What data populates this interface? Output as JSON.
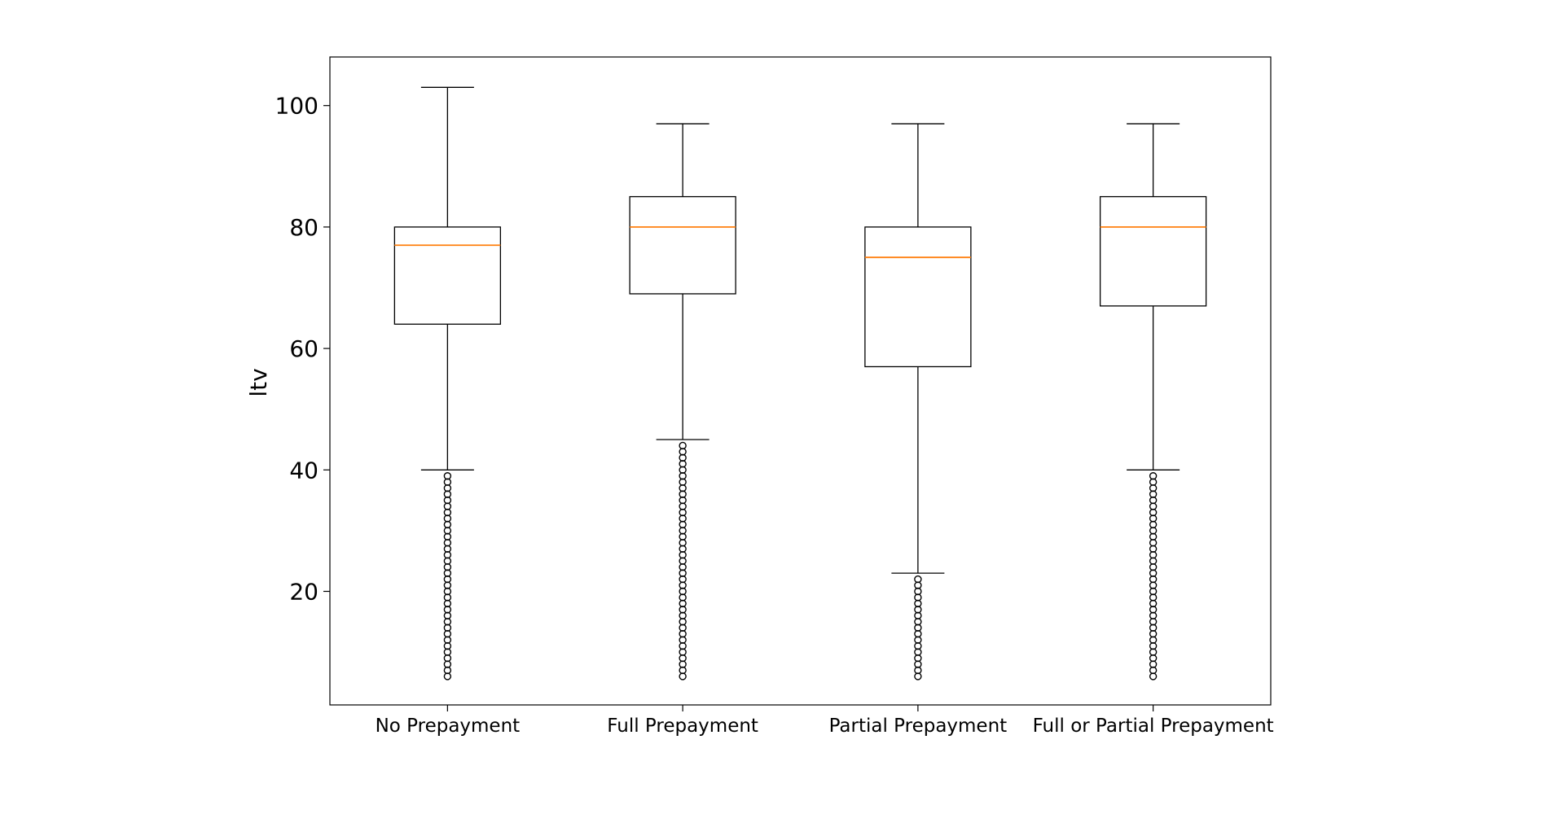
{
  "chart_data": {
    "type": "box",
    "title": "",
    "xlabel": "",
    "ylabel": "ltv",
    "ylim": [
      1.3,
      108
    ],
    "yticks": [
      20,
      40,
      60,
      80,
      100
    ],
    "grid": false,
    "categories": [
      "No Prepayment",
      "Full Prepayment",
      "Partial Prepayment",
      "Full or Partial Prepayment"
    ],
    "boxes": [
      {
        "category": "No Prepayment",
        "whisker_low": 40,
        "q1": 64,
        "median": 77,
        "q3": 80,
        "whisker_high": 103,
        "outliers": [
          6,
          7,
          8,
          9,
          10,
          11,
          12,
          13,
          14,
          15,
          16,
          17,
          18,
          19,
          20,
          21,
          22,
          23,
          24,
          25,
          26,
          27,
          28,
          29,
          30,
          31,
          32,
          33,
          34,
          35,
          36,
          37,
          38,
          39
        ]
      },
      {
        "category": "Full Prepayment",
        "whisker_low": 45,
        "q1": 69,
        "median": 80,
        "q3": 85,
        "whisker_high": 97,
        "outliers": [
          6,
          7,
          8,
          9,
          10,
          11,
          12,
          13,
          14,
          15,
          16,
          17,
          18,
          19,
          20,
          21,
          22,
          23,
          24,
          25,
          26,
          27,
          28,
          29,
          30,
          31,
          32,
          33,
          34,
          35,
          36,
          37,
          38,
          39,
          40,
          41,
          42,
          43,
          44
        ]
      },
      {
        "category": "Partial Prepayment",
        "whisker_low": 23,
        "q1": 57,
        "median": 75,
        "q3": 80,
        "whisker_high": 97,
        "outliers": [
          6,
          7,
          8,
          9,
          10,
          11,
          12,
          13,
          14,
          15,
          16,
          17,
          18,
          19,
          20,
          21,
          22
        ]
      },
      {
        "category": "Full or Partial Prepayment",
        "whisker_low": 40,
        "q1": 67,
        "median": 80,
        "q3": 85,
        "whisker_high": 97,
        "outliers": [
          6,
          7,
          8,
          9,
          10,
          11,
          12,
          13,
          14,
          15,
          16,
          17,
          18,
          19,
          20,
          21,
          22,
          23,
          24,
          25,
          26,
          27,
          28,
          29,
          30,
          31,
          32,
          33,
          34,
          35,
          36,
          37,
          38,
          39
        ]
      }
    ],
    "colors": {
      "box": "#000000",
      "median": "#ff7f0e",
      "outlier": "#000000"
    }
  }
}
